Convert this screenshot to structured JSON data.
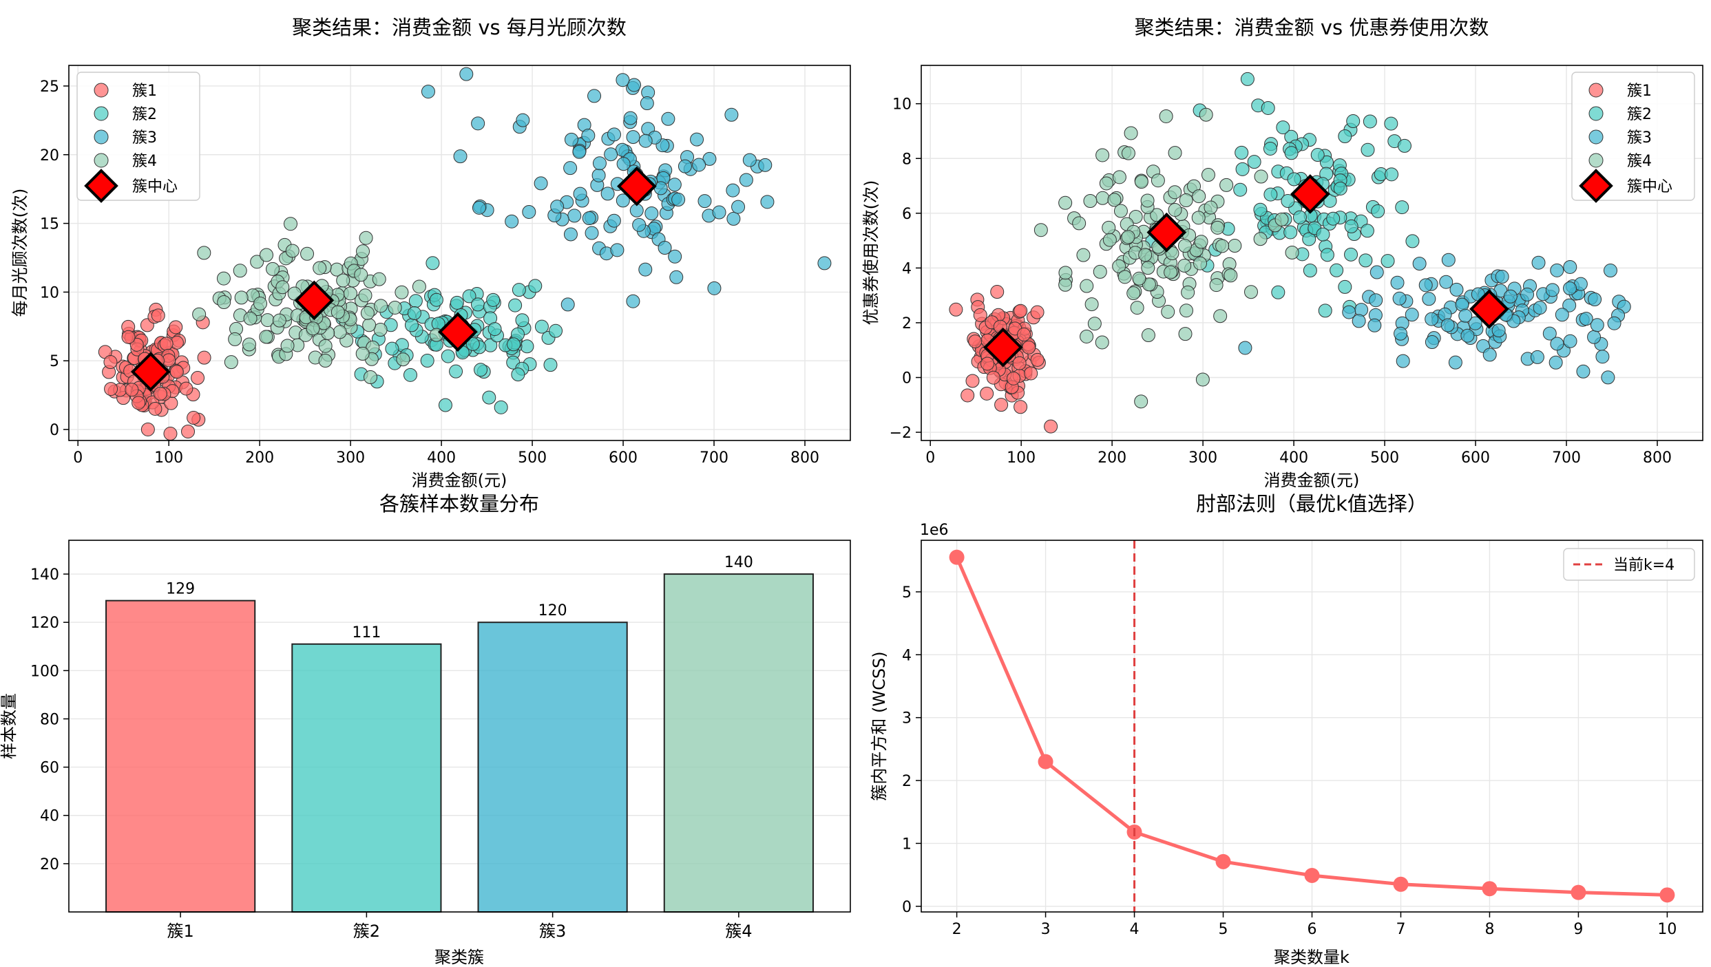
{
  "chart_data": [
    {
      "id": "scatter1",
      "type": "scatter",
      "title": "聚类结果：消费金额 vs 每月光顾次数",
      "xlabel": "消费金额(元)",
      "ylabel": "每月光顾次数(次)",
      "xlim": [
        -10,
        850
      ],
      "ylim": [
        -0.8,
        26.5
      ],
      "xticks": [
        0,
        100,
        200,
        300,
        400,
        500,
        600,
        700,
        800
      ],
      "xtick_labels": [
        "0",
        "100",
        "200",
        "300",
        "400",
        "500",
        "600",
        "700",
        "800"
      ],
      "yticks": [
        0,
        5,
        10,
        15,
        20,
        25
      ],
      "ytick_labels": [
        "0",
        "5",
        "10",
        "15",
        "20",
        "25"
      ],
      "legend_position": "top-left",
      "series": [
        {
          "name": "簇1",
          "color": "#ff6b6b",
          "n": 129,
          "mean": [
            80,
            4.2
          ],
          "sd": [
            22,
            1.7
          ]
        },
        {
          "name": "簇2",
          "color": "#4ecdc4",
          "n": 111,
          "mean": [
            420,
            7.0
          ],
          "sd": [
            48,
            1.8
          ]
        },
        {
          "name": "簇3",
          "color": "#45b7d1",
          "n": 120,
          "mean": [
            615,
            17.8
          ],
          "sd": [
            75,
            3.8
          ]
        },
        {
          "name": "簇4",
          "color": "#96ceb4",
          "n": 140,
          "mean": [
            258,
            9.3
          ],
          "sd": [
            48,
            2.3
          ]
        }
      ],
      "centers": {
        "name": "簇中心",
        "color": "#ff0000",
        "points": [
          [
            80,
            4.2
          ],
          [
            418,
            7.1
          ],
          [
            615,
            17.7
          ],
          [
            260,
            9.4
          ]
        ]
      }
    },
    {
      "id": "scatter2",
      "type": "scatter",
      "title": "聚类结果：消费金额 vs 优惠券使用次数",
      "xlabel": "消费金额(元)",
      "ylabel": "优惠券使用次数(次)",
      "xlim": [
        -10,
        850
      ],
      "ylim": [
        -2.3,
        11.4
      ],
      "xticks": [
        0,
        100,
        200,
        300,
        400,
        500,
        600,
        700,
        800
      ],
      "xtick_labels": [
        "0",
        "100",
        "200",
        "300",
        "400",
        "500",
        "600",
        "700",
        "800"
      ],
      "yticks": [
        -2,
        0,
        2,
        4,
        6,
        8,
        10
      ],
      "ytick_labels": [
        "−2",
        "0",
        "2",
        "4",
        "6",
        "8",
        "10"
      ],
      "legend_position": "top-right",
      "series": [
        {
          "name": "簇1",
          "color": "#ff6b6b",
          "n": 129,
          "mean": [
            80,
            1.1
          ],
          "sd": [
            22,
            0.75
          ]
        },
        {
          "name": "簇2",
          "color": "#4ecdc4",
          "n": 111,
          "mean": [
            420,
            6.8
          ],
          "sd": [
            48,
            1.8
          ]
        },
        {
          "name": "簇3",
          "color": "#45b7d1",
          "n": 120,
          "mean": [
            615,
            2.4
          ],
          "sd": [
            75,
            1.0
          ]
        },
        {
          "name": "簇4",
          "color": "#96ceb4",
          "n": 140,
          "mean": [
            258,
            5.2
          ],
          "sd": [
            48,
            1.7
          ]
        }
      ],
      "centers": {
        "name": "簇中心",
        "color": "#ff0000",
        "points": [
          [
            80,
            1.1
          ],
          [
            418,
            6.7
          ],
          [
            615,
            2.5
          ],
          [
            260,
            5.3
          ]
        ]
      }
    },
    {
      "id": "bar",
      "type": "bar",
      "title": "各簇样本数量分布",
      "xlabel": "聚类簇",
      "ylabel": "样本数量",
      "categories": [
        "簇1",
        "簇2",
        "簇3",
        "簇4"
      ],
      "values": [
        129,
        111,
        120,
        140
      ],
      "value_labels": [
        "129",
        "111",
        "120",
        "140"
      ],
      "colors": [
        "#ff6b6b",
        "#4ecdc4",
        "#45b7d1",
        "#96ceb4"
      ],
      "ylim": [
        0,
        154
      ],
      "yticks": [
        20,
        40,
        60,
        80,
        100,
        120,
        140
      ],
      "ytick_labels": [
        "20",
        "40",
        "60",
        "80",
        "100",
        "120",
        "140"
      ]
    },
    {
      "id": "elbow",
      "type": "line",
      "title": "肘部法则（最优k值选择）",
      "xlabel": "聚类数量k",
      "ylabel": "簇内平方和 (WCSS)",
      "offset_label": "1e6",
      "x": [
        2,
        3,
        4,
        5,
        6,
        7,
        8,
        9,
        10
      ],
      "y": [
        5.55,
        2.3,
        1.18,
        0.71,
        0.49,
        0.35,
        0.28,
        0.22,
        0.18
      ],
      "xlim": [
        1.6,
        10.4
      ],
      "ylim": [
        -0.09,
        5.82
      ],
      "xticks": [
        2,
        3,
        4,
        5,
        6,
        7,
        8,
        9,
        10
      ],
      "xtick_labels": [
        "2",
        "3",
        "4",
        "5",
        "6",
        "7",
        "8",
        "9",
        "10"
      ],
      "yticks": [
        0,
        1,
        2,
        3,
        4,
        5
      ],
      "ytick_labels": [
        "0",
        "1",
        "2",
        "3",
        "4",
        "5"
      ],
      "line_color": "#ff6b6b",
      "vline": {
        "x": 4,
        "label": "当前k=4",
        "color": "#e04040"
      },
      "legend_position": "top-right"
    }
  ]
}
